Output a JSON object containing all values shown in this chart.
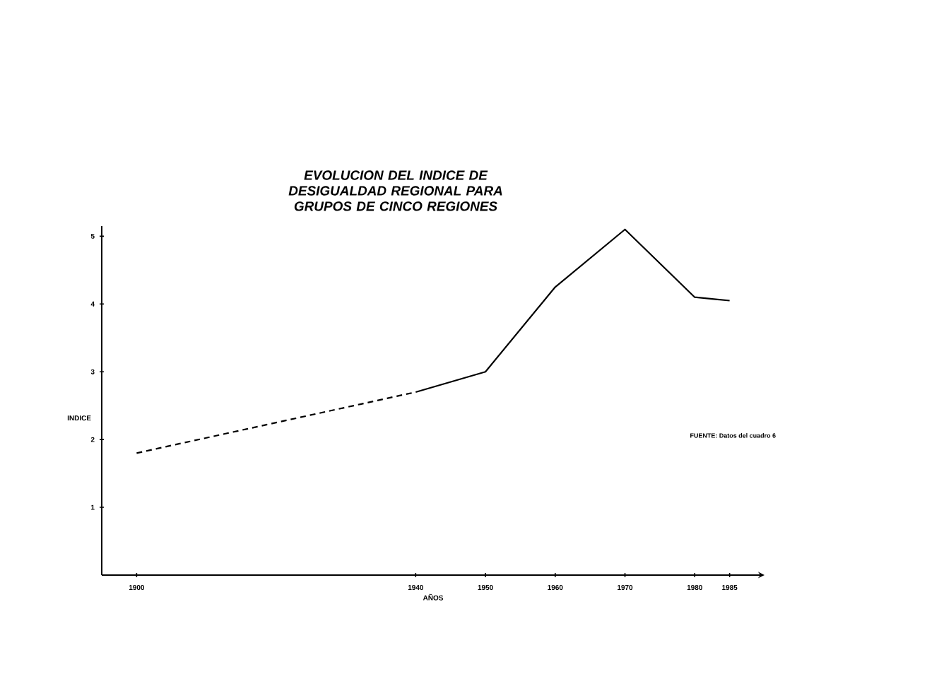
{
  "chart_data": {
    "type": "line",
    "title": "EVOLUCION DEL INDICE DE DESIGUALDAD REGIONAL PARA GRUPOS DE CINCO REGIONES",
    "xlabel": "AÑOS",
    "ylabel": "INDICE",
    "series": [
      {
        "x": [
          1900,
          1940
        ],
        "values": [
          1.8,
          2.7
        ],
        "color": "#000000",
        "line_style": "dashed"
      },
      {
        "x": [
          1940,
          1950,
          1960,
          1970,
          1980,
          1985
        ],
        "values": [
          2.7,
          3.0,
          4.25,
          5.1,
          4.1,
          4.05
        ],
        "color": "#000000",
        "line_style": "solid"
      }
    ],
    "xlim": [
      1895,
      1990
    ],
    "xticks": [
      1900,
      1940,
      1950,
      1960,
      1970,
      1980,
      1985
    ],
    "ylim": [
      0,
      5.15
    ],
    "yticks": [
      1,
      2,
      3,
      4,
      5
    ],
    "annotations": [
      "FUENTE: Datos del cuadro 6"
    ],
    "grid": false,
    "legend": false,
    "marker": "none"
  }
}
